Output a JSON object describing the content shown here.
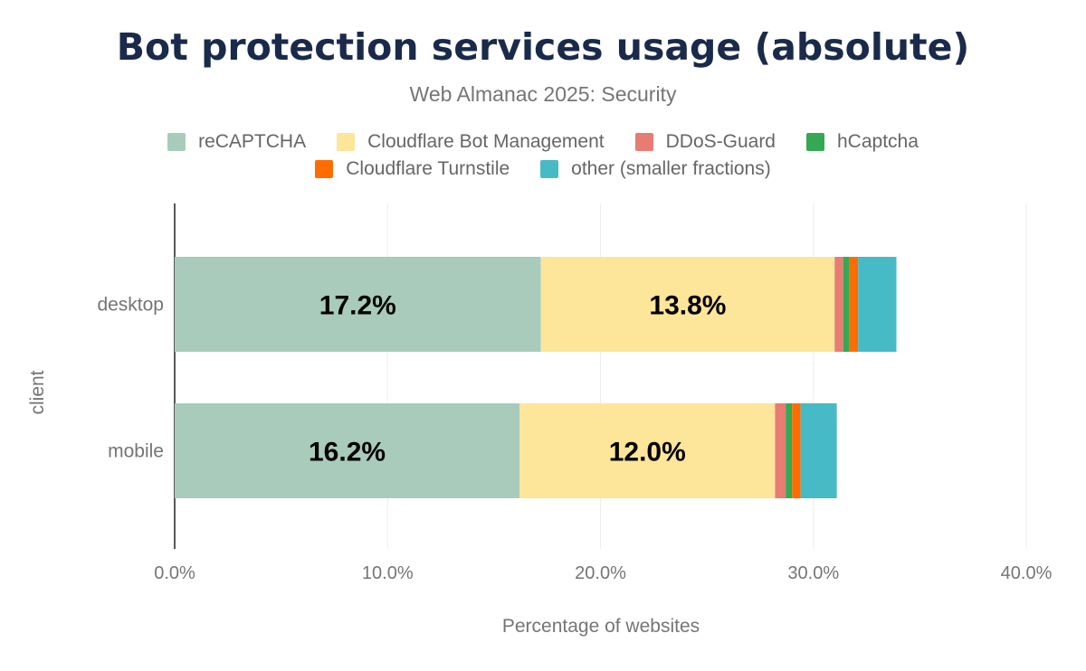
{
  "chart_data": {
    "type": "bar",
    "orientation": "horizontal",
    "stacked": true,
    "title": "Bot protection services usage (absolute)",
    "subtitle": "Web Almanac 2025: Security",
    "xlabel": "Percentage of websites",
    "ylabel": "client",
    "xlim": [
      0,
      40
    ],
    "xticks": [
      "0.0%",
      "10.0%",
      "20.0%",
      "30.0%",
      "40.0%"
    ],
    "xtick_values": [
      0,
      10,
      20,
      30,
      40
    ],
    "grid": true,
    "legend_position": "top",
    "categories": [
      "desktop",
      "mobile"
    ],
    "series": [
      {
        "name": "reCAPTCHA",
        "color": "#a8cbbb",
        "values": [
          17.2,
          16.2
        ],
        "labels": [
          "17.2%",
          "16.2%"
        ]
      },
      {
        "name": "Cloudflare Bot Management",
        "color": "#fde59a",
        "values": [
          13.8,
          12.0
        ],
        "labels": [
          "13.8%",
          "12.0%"
        ]
      },
      {
        "name": "DDoS-Guard",
        "color": "#e77c73",
        "values": [
          0.4,
          0.5
        ]
      },
      {
        "name": "hCaptcha",
        "color": "#35a853",
        "values": [
          0.3,
          0.3
        ]
      },
      {
        "name": "Cloudflare Turnstile",
        "color": "#ff6d01",
        "values": [
          0.4,
          0.4
        ]
      },
      {
        "name": "other (smaller fractions)",
        "color": "#46bbc6",
        "values": [
          1.8,
          1.7
        ]
      }
    ]
  }
}
